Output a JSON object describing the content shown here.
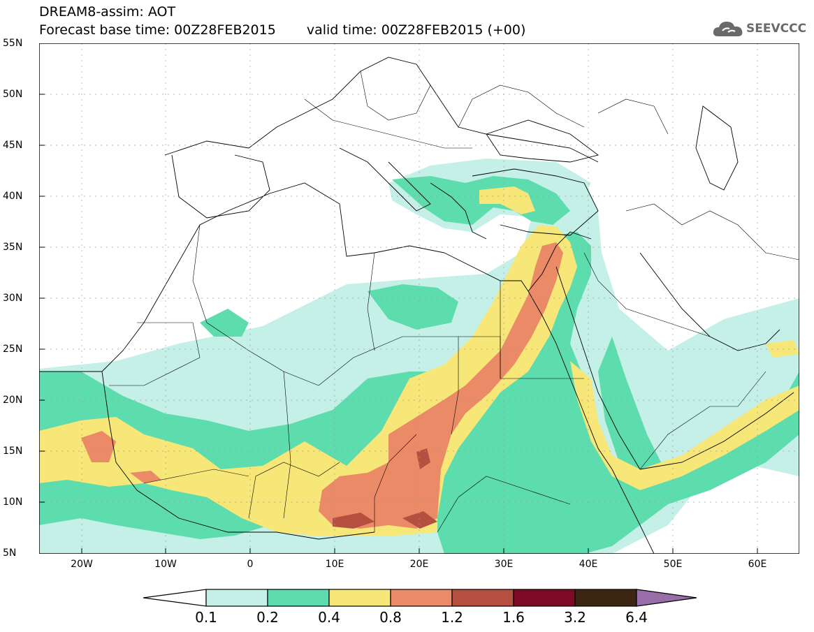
{
  "header": {
    "line1": "DREAM8-assim: AOT",
    "base_time": "Forecast base time: 00Z28FEB2015",
    "valid_time": "valid time: 00Z28FEB2015 (+00)"
  },
  "logo": {
    "text": "SEEVCCC",
    "icon": "cloud-icon",
    "color": "#6a6a6a"
  },
  "map": {
    "lat_labels": [
      "55N",
      "50N",
      "45N",
      "40N",
      "35N",
      "30N",
      "25N",
      "20N",
      "15N",
      "10N",
      "5N"
    ],
    "lon_labels": [
      "20W",
      "10W",
      "0",
      "10E",
      "20E",
      "30E",
      "40E",
      "50E",
      "60E"
    ],
    "extent": {
      "lon": [
        -25,
        65
      ],
      "lat": [
        5,
        55
      ]
    }
  },
  "colorbar": {
    "ticks": [
      "0.1",
      "0.2",
      "0.4",
      "0.8",
      "1.2",
      "1.6",
      "3.2",
      "6.4"
    ],
    "colors": [
      "#ffffff",
      "#c4f0e8",
      "#5ddcae",
      "#f7e678",
      "#ea8a66",
      "#b54f3f",
      "#7e0a26",
      "#3c2612",
      "#9a6ea8"
    ]
  }
}
